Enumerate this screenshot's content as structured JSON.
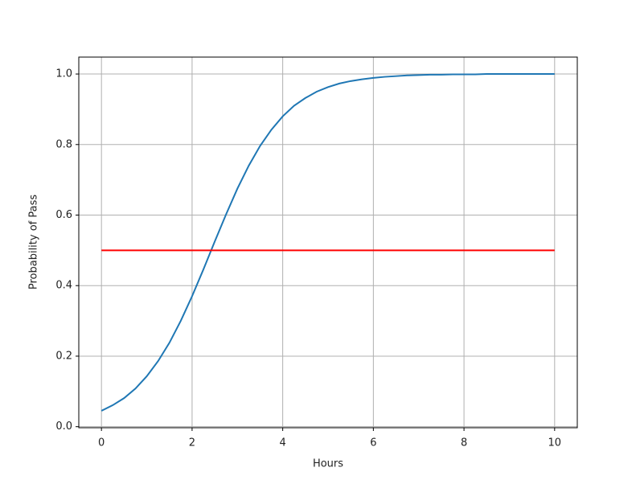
{
  "chart_data": {
    "type": "line",
    "x_label": "Hours",
    "y_label": "Probability of Pass",
    "series": [
      {
        "color": "#1f77b4",
        "x": [
          0,
          0.25,
          0.5,
          0.75,
          1,
          1.25,
          1.5,
          1.75,
          2,
          2.25,
          2.5,
          2.75,
          3,
          3.25,
          3.5,
          3.75,
          4,
          4.25,
          4.5,
          4.75,
          5,
          5.25,
          5.5,
          5.75,
          6,
          6.25,
          6.5,
          6.75,
          7,
          7.25,
          7.5,
          7.75,
          8,
          8.25,
          8.5,
          8.75,
          9,
          9.25,
          9.5,
          9.75,
          10
        ],
        "values": [
          0.045,
          0.061,
          0.081,
          0.108,
          0.143,
          0.186,
          0.238,
          0.3,
          0.37,
          0.446,
          0.525,
          0.602,
          0.675,
          0.74,
          0.796,
          0.842,
          0.88,
          0.91,
          0.932,
          0.95,
          0.963,
          0.973,
          0.98,
          0.985,
          0.989,
          0.992,
          0.994,
          0.996,
          0.997,
          0.998,
          0.998,
          0.999,
          0.999,
          0.999,
          1.0,
          1.0,
          1.0,
          1.0,
          1.0,
          1.0,
          1.0
        ]
      },
      {
        "color": "#ff0000",
        "x": [
          0,
          10
        ],
        "values": [
          0.5,
          0.5
        ]
      }
    ],
    "xlim": [
      -0.5,
      10.5
    ],
    "xticks": [
      0,
      2,
      4,
      6,
      8,
      10
    ],
    "ylim": [
      -0.003,
      1.048
    ],
    "yticks": [
      {
        "value": 0,
        "label": "0.0"
      },
      0.2,
      0.4,
      0.6,
      0.8,
      {
        "value": 1,
        "label": "1.0"
      }
    ],
    "grid": true
  }
}
